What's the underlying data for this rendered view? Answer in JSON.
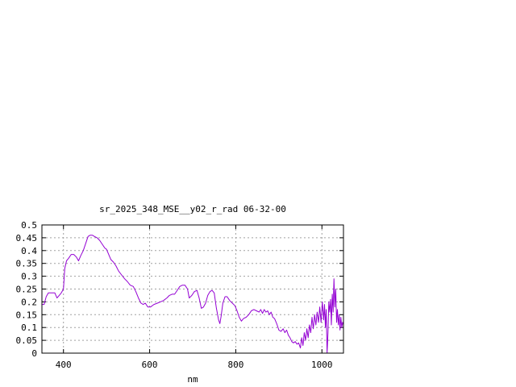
{
  "chart_data": {
    "type": "line",
    "title": "sr_2025_348_MSE__y02_r_rad 06-32-00",
    "xlabel": "nm",
    "ylabel": "",
    "xlim": [
      350,
      1050
    ],
    "ylim": [
      0,
      0.5
    ],
    "x_ticks": [
      400,
      600,
      800,
      1000
    ],
    "x_tick_labels": [
      "400",
      "600",
      "800",
      "1000"
    ],
    "y_ticks": [
      0,
      0.05,
      0.1,
      0.15,
      0.2,
      0.25,
      0.3,
      0.35,
      0.4,
      0.45,
      0.5
    ],
    "y_tick_labels": [
      "0",
      "0.05",
      "0.1",
      "0.15",
      "0.2",
      "0.25",
      "0.3",
      "0.35",
      "0.4",
      "0.45",
      "0.5"
    ],
    "grid": true,
    "line_color": "#9400d3",
    "series": [
      {
        "values_xy": [
          [
            350,
            0.19
          ],
          [
            355,
            0.19
          ],
          [
            360,
            0.22
          ],
          [
            365,
            0.235
          ],
          [
            370,
            0.235
          ],
          [
            375,
            0.235
          ],
          [
            380,
            0.235
          ],
          [
            385,
            0.215
          ],
          [
            390,
            0.225
          ],
          [
            395,
            0.235
          ],
          [
            400,
            0.25
          ],
          [
            403,
            0.33
          ],
          [
            407,
            0.36
          ],
          [
            412,
            0.37
          ],
          [
            418,
            0.385
          ],
          [
            424,
            0.385
          ],
          [
            430,
            0.375
          ],
          [
            435,
            0.36
          ],
          [
            440,
            0.38
          ],
          [
            446,
            0.4
          ],
          [
            452,
            0.43
          ],
          [
            457,
            0.455
          ],
          [
            462,
            0.46
          ],
          [
            467,
            0.46
          ],
          [
            472,
            0.455
          ],
          [
            478,
            0.45
          ],
          [
            484,
            0.44
          ],
          [
            490,
            0.425
          ],
          [
            496,
            0.41
          ],
          [
            500,
            0.405
          ],
          [
            505,
            0.385
          ],
          [
            510,
            0.365
          ],
          [
            516,
            0.355
          ],
          [
            522,
            0.34
          ],
          [
            528,
            0.32
          ],
          [
            535,
            0.305
          ],
          [
            542,
            0.29
          ],
          [
            548,
            0.28
          ],
          [
            555,
            0.265
          ],
          [
            562,
            0.26
          ],
          [
            568,
            0.24
          ],
          [
            574,
            0.215
          ],
          [
            580,
            0.195
          ],
          [
            585,
            0.19
          ],
          [
            590,
            0.195
          ],
          [
            596,
            0.18
          ],
          [
            602,
            0.18
          ],
          [
            610,
            0.19
          ],
          [
            618,
            0.195
          ],
          [
            625,
            0.2
          ],
          [
            632,
            0.205
          ],
          [
            640,
            0.215
          ],
          [
            646,
            0.225
          ],
          [
            652,
            0.23
          ],
          [
            658,
            0.23
          ],
          [
            664,
            0.245
          ],
          [
            670,
            0.26
          ],
          [
            676,
            0.265
          ],
          [
            682,
            0.265
          ],
          [
            688,
            0.25
          ],
          [
            692,
            0.215
          ],
          [
            698,
            0.225
          ],
          [
            704,
            0.24
          ],
          [
            710,
            0.245
          ],
          [
            715,
            0.215
          ],
          [
            720,
            0.175
          ],
          [
            725,
            0.18
          ],
          [
            730,
            0.195
          ],
          [
            735,
            0.225
          ],
          [
            740,
            0.24
          ],
          [
            745,
            0.245
          ],
          [
            750,
            0.235
          ],
          [
            755,
            0.175
          ],
          [
            760,
            0.13
          ],
          [
            763,
            0.115
          ],
          [
            766,
            0.145
          ],
          [
            770,
            0.195
          ],
          [
            775,
            0.22
          ],
          [
            780,
            0.22
          ],
          [
            786,
            0.205
          ],
          [
            792,
            0.195
          ],
          [
            798,
            0.185
          ],
          [
            803,
            0.165
          ],
          [
            808,
            0.14
          ],
          [
            813,
            0.125
          ],
          [
            818,
            0.135
          ],
          [
            824,
            0.14
          ],
          [
            830,
            0.15
          ],
          [
            836,
            0.165
          ],
          [
            842,
            0.17
          ],
          [
            848,
            0.165
          ],
          [
            854,
            0.16
          ],
          [
            858,
            0.17
          ],
          [
            862,
            0.155
          ],
          [
            866,
            0.17
          ],
          [
            870,
            0.16
          ],
          [
            874,
            0.165
          ],
          [
            878,
            0.15
          ],
          [
            882,
            0.16
          ],
          [
            886,
            0.14
          ],
          [
            890,
            0.135
          ],
          [
            895,
            0.115
          ],
          [
            900,
            0.09
          ],
          [
            905,
            0.085
          ],
          [
            910,
            0.095
          ],
          [
            914,
            0.08
          ],
          [
            918,
            0.09
          ],
          [
            922,
            0.07
          ],
          [
            926,
            0.06
          ],
          [
            930,
            0.045
          ],
          [
            934,
            0.04
          ],
          [
            938,
            0.045
          ],
          [
            942,
            0.035
          ],
          [
            946,
            0.04
          ],
          [
            950,
            0.02
          ],
          [
            953,
            0.06
          ],
          [
            956,
            0.03
          ],
          [
            959,
            0.08
          ],
          [
            962,
            0.05
          ],
          [
            965,
            0.095
          ],
          [
            968,
            0.06
          ],
          [
            971,
            0.11
          ],
          [
            974,
            0.08
          ],
          [
            977,
            0.14
          ],
          [
            980,
            0.095
          ],
          [
            983,
            0.15
          ],
          [
            986,
            0.11
          ],
          [
            989,
            0.16
          ],
          [
            992,
            0.12
          ],
          [
            995,
            0.18
          ],
          [
            998,
            0.12
          ],
          [
            1001,
            0.2
          ],
          [
            1004,
            0.13
          ],
          [
            1006,
            0.19
          ],
          [
            1008,
            0.1
          ],
          [
            1010,
            0.17
          ],
          [
            1012,
            0.0
          ],
          [
            1014,
            0.08
          ],
          [
            1016,
            0.2
          ],
          [
            1018,
            0.16
          ],
          [
            1020,
            0.21
          ],
          [
            1022,
            0.11
          ],
          [
            1024,
            0.23
          ],
          [
            1026,
            0.16
          ],
          [
            1028,
            0.29
          ],
          [
            1030,
            0.18
          ],
          [
            1032,
            0.25
          ],
          [
            1034,
            0.12
          ],
          [
            1036,
            0.17
          ],
          [
            1038,
            0.11
          ],
          [
            1040,
            0.15
          ],
          [
            1042,
            0.09
          ],
          [
            1044,
            0.14
          ],
          [
            1046,
            0.1
          ],
          [
            1048,
            0.12
          ],
          [
            1050,
            0.11
          ]
        ]
      }
    ]
  }
}
